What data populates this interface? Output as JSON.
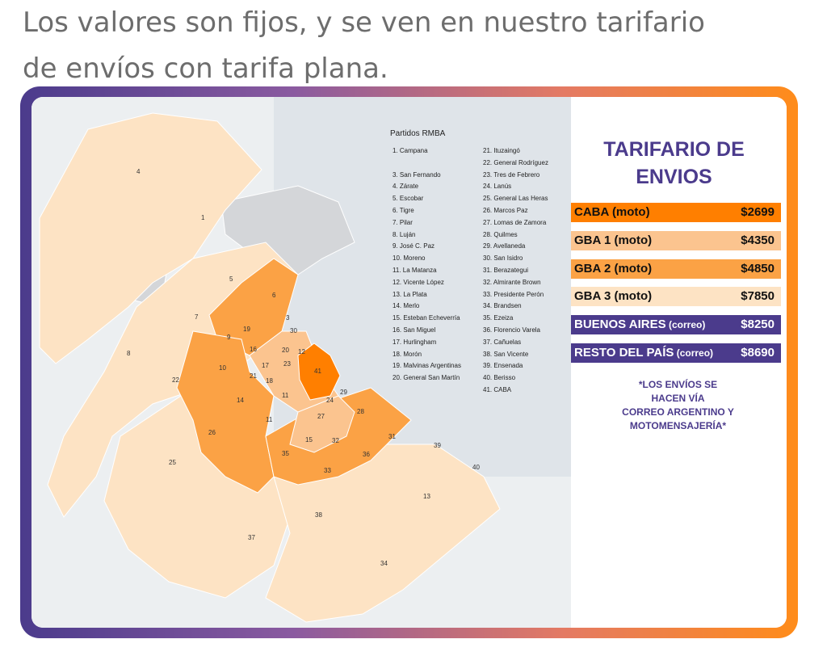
{
  "intro": {
    "line1": "Los valores son fijos, y se ven en nuestro tarifario",
    "line2": "de envíos con tarifa plana."
  },
  "colors": {
    "frame_start": "#4b3b8c",
    "frame_end": "#ff8c1a",
    "caba": "#ff7f00",
    "gba1": "#fbc48f",
    "gba2": "#fba245",
    "gba3": "#fde3c4",
    "correo": "#4b3b8c",
    "water": "#dfe4e9",
    "outside": "#d4d6d9"
  },
  "map": {
    "legend_title": "Partidos RMBA",
    "legend_left": [
      "1. Campana",
      "",
      "3. San Fernando",
      "4. Zárate",
      "5. Escobar",
      "6. Tigre",
      "7. Pilar",
      "8. Luján",
      "9. José C. Paz",
      "10. Moreno",
      "11. La Matanza",
      "12. Vicente López",
      "13. La Plata",
      "14. Merlo",
      "15. Esteban Echeverría",
      "16. San Miguel",
      "17. Hurlingham",
      "18. Morón",
      "19. Malvinas Argentinas",
      "20. General San Martín"
    ],
    "legend_right": [
      "21. Ituzaingó",
      "22. General Rodríguez",
      "23. Tres de Febrero",
      "24. Lanús",
      "25. General Las Heras",
      "26. Marcos Paz",
      "27. Lomas de Zamora",
      "28. Quilmes",
      "29. Avellaneda",
      "30. San Isidro",
      "31. Berazategui",
      "32. Almirante Brown",
      "33. Presidente Perón",
      "34. Brandsen",
      "35. Ezeiza",
      "36. Florencio Varela",
      "37. Cañuelas",
      "38. San Vicente",
      "39. Ensenada",
      "40. Berisso",
      "41. CABA"
    ],
    "numbers": [
      "4",
      "1",
      "5",
      "6",
      "7",
      "3",
      "30",
      "8",
      "9",
      "19",
      "16",
      "20",
      "12",
      "10",
      "17",
      "23",
      "41",
      "22",
      "21",
      "18",
      "11",
      "14",
      "29",
      "24",
      "28",
      "27",
      "26",
      "11",
      "15",
      "32",
      "31",
      "35",
      "36",
      "39",
      "25",
      "33",
      "40",
      "13",
      "38",
      "37",
      "34"
    ]
  },
  "tarifario": {
    "title_line1": "TARIFARIO DE",
    "title_line2": "ENVIOS",
    "rows": [
      {
        "label": "CABA (moto)",
        "suffix": "",
        "price": "$2699"
      },
      {
        "label": "GBA 1 (moto)",
        "suffix": "",
        "price": "$4350"
      },
      {
        "label": "GBA 2 (moto)",
        "suffix": "",
        "price": "$4850"
      },
      {
        "label": "GBA 3 (moto)",
        "suffix": "",
        "price": "$7850"
      },
      {
        "label": "BUENOS AIRES",
        "suffix": "(correo)",
        "price": "$8250"
      },
      {
        "label": "RESTO DEL PAÍS",
        "suffix": "(correo)",
        "price": "$8690"
      }
    ],
    "note_lines": [
      "*LOS ENVÍOS SE",
      "HACEN VÍA",
      "CORREO ARGENTINO Y",
      "MOTOMENSAJERÍA*"
    ]
  }
}
